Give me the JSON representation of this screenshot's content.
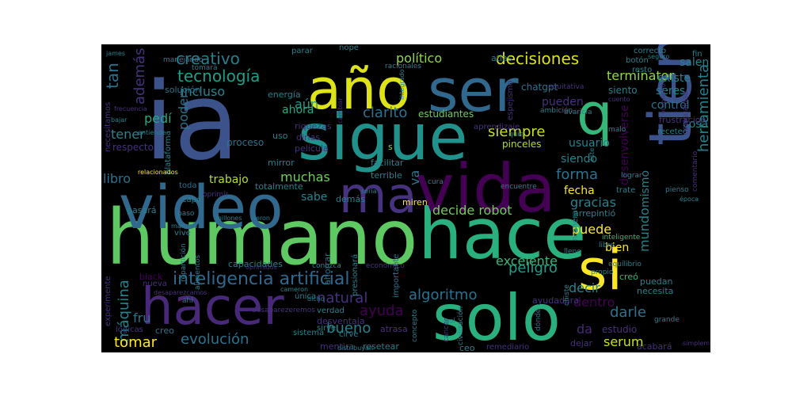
{
  "background": "#000000",
  "palette": [
    "#440154",
    "#46327e",
    "#365c8d",
    "#277f8e",
    "#1fa187",
    "#4ac16d",
    "#a0da39",
    "#fde725"
  ],
  "words": [
    {
      "text": "ia",
      "color": "#3b528b"
    },
    {
      "text": "humano",
      "color": "#5ec962"
    },
    {
      "text": "sigue",
      "color": "#21918c"
    },
    {
      "text": "hace",
      "color": "#2ab07f"
    },
    {
      "text": "video",
      "color": "#31688e"
    },
    {
      "text": "solo",
      "color": "#2ab07f"
    },
    {
      "text": "vida",
      "color": "#440154"
    },
    {
      "text": "tiempo",
      "color": "#3b528b"
    },
    {
      "text": "año",
      "color": "#dde318"
    },
    {
      "text": "ser",
      "color": "#31688e"
    },
    {
      "text": "ma",
      "color": "#46327e"
    },
    {
      "text": "hacer",
      "color": "#482878"
    },
    {
      "text": "si",
      "color": "#fde725"
    },
    {
      "text": "q",
      "color": "#35b779"
    },
    {
      "text": "inteligencia artificial",
      "color": "#31688e"
    },
    {
      "text": "creativo",
      "color": "#277f8e"
    },
    {
      "text": "tecnología",
      "color": "#1f9e89"
    },
    {
      "text": "decisiones",
      "color": "#dde318"
    },
    {
      "text": "político",
      "color": "#90d743"
    },
    {
      "text": "siempre",
      "color": "#c8e020"
    },
    {
      "text": "forma",
      "color": "#2c728e"
    },
    {
      "text": "herramienta",
      "color": "#26828e"
    },
    {
      "text": "máquina",
      "color": "#26828e"
    },
    {
      "text": "evolución",
      "color": "#2c728e"
    },
    {
      "text": "natural",
      "color": "#46327e"
    },
    {
      "text": "algoritmo",
      "color": "#2c728e"
    },
    {
      "text": "peligro",
      "color": "#1f9e89"
    },
    {
      "text": "excelente",
      "color": "#35b779"
    },
    {
      "text": "decide robot",
      "color": "#6ece58"
    },
    {
      "text": "ayuda",
      "color": "#440154"
    },
    {
      "text": "bueno",
      "color": "#26828e"
    },
    {
      "text": "dentro",
      "color": "#440154"
    },
    {
      "text": "darle",
      "color": "#2c728e"
    },
    {
      "text": "mundo",
      "color": "#26828e"
    },
    {
      "text": "tan",
      "color": "#2c728e"
    },
    {
      "text": "además",
      "color": "#46327e"
    },
    {
      "text": "aún",
      "color": "#1f9e89"
    },
    {
      "text": "incluso",
      "color": "#26828e"
    },
    {
      "text": "poder",
      "color": "#2c728e"
    },
    {
      "text": "pedí",
      "color": "#22a884"
    },
    {
      "text": "tener",
      "color": "#26828e"
    },
    {
      "text": "ahora",
      "color": "#22a884"
    },
    {
      "text": "clarito",
      "color": "#2c728e"
    },
    {
      "text": "estudiantes",
      "color": "#6ece58"
    },
    {
      "text": "usuario",
      "color": "#26828e"
    },
    {
      "text": "pueden",
      "color": "#46327e"
    },
    {
      "text": "terminator",
      "color": "#90d743"
    },
    {
      "text": "existe",
      "color": "#26828e"
    },
    {
      "text": "salen",
      "color": "#26828e"
    },
    {
      "text": "seres",
      "color": "#26828e"
    },
    {
      "text": "siento",
      "color": "#26828e"
    },
    {
      "text": "control",
      "color": "#2c728e"
    },
    {
      "text": "cosa",
      "color": "#26828e"
    },
    {
      "text": "siendo",
      "color": "#26828e"
    },
    {
      "text": "mismo",
      "color": "#26828e"
    },
    {
      "text": "muchas",
      "color": "#6ece58"
    },
    {
      "text": "trabajo",
      "color": "#b5de2b"
    },
    {
      "text": "libro",
      "color": "#2c728e"
    },
    {
      "text": "sabe",
      "color": "#26828e"
    },
    {
      "text": "va",
      "color": "#2c728e"
    },
    {
      "text": "fecha",
      "color": "#fde725"
    },
    {
      "text": "gracias",
      "color": "#26828e"
    },
    {
      "text": "puede",
      "color": "#fde725"
    },
    {
      "text": "bien",
      "color": "#fde725"
    },
    {
      "text": "decir",
      "color": "#26828e"
    },
    {
      "text": "da",
      "color": "#482878"
    },
    {
      "text": "tomar",
      "color": "#fde725"
    },
    {
      "text": "fru",
      "color": "#2c728e"
    },
    {
      "text": "serum",
      "color": "#c8e020"
    },
    {
      "text": "estudio",
      "color": "#46327e"
    },
    {
      "text": "respecto",
      "color": "#46327e"
    },
    {
      "text": "proceso",
      "color": "#2c728e"
    },
    {
      "text": "plataforma",
      "color": "#26828e"
    },
    {
      "text": "uso",
      "color": "#26828e"
    },
    {
      "text": "dirías",
      "color": "#46327e"
    },
    {
      "text": "película",
      "color": "#46327e"
    },
    {
      "text": "facilitar",
      "color": "#26828e"
    },
    {
      "text": "terrible",
      "color": "#26828e"
    },
    {
      "text": "pinceles",
      "color": "#b5de2b"
    },
    {
      "text": "aprendizaje",
      "color": "#46327e"
    },
    {
      "text": "chatgpt",
      "color": "#2c728e"
    },
    {
      "text": "solución",
      "color": "#2c728e"
    },
    {
      "text": "energía",
      "color": "#26828e"
    },
    {
      "text": "mirror",
      "color": "#26828e"
    },
    {
      "text": "riquezas",
      "color": "#46327e"
    },
    {
      "text": "toda",
      "color": "#2c728e"
    },
    {
      "text": "capacidades",
      "color": "#26828e"
    },
    {
      "text": "demás",
      "color": "#26828e"
    },
    {
      "text": "totalmente",
      "color": "#26828e"
    },
    {
      "text": "miren",
      "color": "#fde725"
    },
    {
      "text": "arrepintió",
      "color": "#26828e"
    },
    {
      "text": "trate",
      "color": "#26828e"
    },
    {
      "text": "puedan",
      "color": "#26828e"
    },
    {
      "text": "necesita",
      "color": "#26828e"
    },
    {
      "text": "ayudadara",
      "color": "#46327e"
    },
    {
      "text": "creó",
      "color": "#35b779"
    },
    {
      "text": "desenvolverse",
      "color": "#440154"
    },
    {
      "text": "frustracion",
      "color": "#46327e"
    },
    {
      "text": "receteo",
      "color": "#26828e"
    },
    {
      "text": "comentario",
      "color": "#46327e"
    },
    {
      "text": "vive",
      "color": "#26828e"
    },
    {
      "text": "única",
      "color": "#26828e"
    },
    {
      "text": "verdad",
      "color": "#26828e"
    },
    {
      "text": "ahorrar",
      "color": "#2c728e"
    },
    {
      "text": "desventaja",
      "color": "#46327e"
    },
    {
      "text": "atrasa",
      "color": "#46327e"
    },
    {
      "text": "sistema",
      "color": "#26828e"
    },
    {
      "text": "mentira",
      "color": "#46327e"
    },
    {
      "text": "resetear",
      "color": "#26828e"
    },
    {
      "text": "ceo",
      "color": "#26828e"
    },
    {
      "text": "remediario",
      "color": "#46327e"
    },
    {
      "text": "dejar",
      "color": "#46327e"
    },
    {
      "text": "acabará",
      "color": "#46327e"
    },
    {
      "text": "creo",
      "color": "#2c728e"
    },
    {
      "text": "cirve",
      "color": "#26828e"
    },
    {
      "text": "sirve",
      "color": "#26828e"
    },
    {
      "text": "lógicas",
      "color": "#46327e"
    },
    {
      "text": "pasará",
      "color": "#26828e"
    },
    {
      "text": "capo",
      "color": "#26828e"
    },
    {
      "text": "black",
      "color": "#440154"
    },
    {
      "text": "nueva",
      "color": "#46327e"
    },
    {
      "text": "experimente",
      "color": "#46327e"
    },
    {
      "text": "necesitamos",
      "color": "#46327e"
    },
    {
      "text": "atlas",
      "color": "#26828e"
    },
    {
      "text": "nope",
      "color": "#26828e"
    },
    {
      "text": "parar",
      "color": "#26828e"
    },
    {
      "text": "correcto",
      "color": "#26828e"
    },
    {
      "text": "fin",
      "color": "#26828e"
    },
    {
      "text": "resto",
      "color": "#26828e"
    },
    {
      "text": "botón",
      "color": "#26828e"
    },
    {
      "text": "seguro",
      "color": "#26828e"
    },
    {
      "text": "tomará",
      "color": "#26828e"
    },
    {
      "text": "manejando",
      "color": "#26828e"
    },
    {
      "text": "racionales",
      "color": "#26828e"
    },
    {
      "text": "equitativa",
      "color": "#46327e"
    },
    {
      "text": "ambición",
      "color": "#26828e"
    },
    {
      "text": "avaricia",
      "color": "#26828e"
    },
    {
      "text": "cuento",
      "color": "#46327e"
    },
    {
      "text": "visionario",
      "color": "#46327e"
    },
    {
      "text": "espejismo",
      "color": "#46327e"
    },
    {
      "text": "s",
      "color": "#90d743"
    },
    {
      "text": "cura",
      "color": "#26828e"
    },
    {
      "text": "encuentre",
      "color": "#26828e"
    },
    {
      "text": "malo",
      "color": "#26828e"
    },
    {
      "text": "lograr",
      "color": "#26828e"
    },
    {
      "text": "pienso",
      "color": "#26828e"
    },
    {
      "text": "libre",
      "color": "#26828e"
    },
    {
      "text": "propio",
      "color": "#26828e"
    },
    {
      "text": "equilibrio",
      "color": "#26828e"
    },
    {
      "text": "inteligente",
      "color": "#35b779"
    },
    {
      "text": "grande",
      "color": "#26828e"
    },
    {
      "text": "simplemente",
      "color": "#46327e"
    },
    {
      "text": "desigualdad",
      "color": "#46327e"
    },
    {
      "text": "lleno",
      "color": "#26828e"
    },
    {
      "text": "manera",
      "color": "#26828e"
    },
    {
      "text": "chiste",
      "color": "#26828e"
    },
    {
      "text": "dónde",
      "color": "#2c728e"
    },
    {
      "text": "civilización",
      "color": "#26828e"
    },
    {
      "text": "cancer",
      "color": "#46327e"
    },
    {
      "text": "concepto",
      "color": "#26828e"
    },
    {
      "text": "importante",
      "color": "#2c728e"
    },
    {
      "text": "presionará",
      "color": "#26828e"
    },
    {
      "text": "económico",
      "color": "#46327e"
    },
    {
      "text": "conozca",
      "color": "#26828e"
    },
    {
      "text": "así",
      "color": "#26828e"
    },
    {
      "text": "alimentos",
      "color": "#26828e"
    },
    {
      "text": "repartición",
      "color": "#26828e"
    },
    {
      "text": "desaparezcamos",
      "color": "#46327e"
    },
    {
      "text": "desaparezeremos",
      "color": "#46327e"
    },
    {
      "text": "ahí",
      "color": "#26828e"
    },
    {
      "text": "oprimir",
      "color": "#46327e"
    },
    {
      "text": "oprimidos",
      "color": "#46327e"
    },
    {
      "text": "paso",
      "color": "#26828e"
    },
    {
      "text": "marcará",
      "color": "#26828e"
    },
    {
      "text": "millones",
      "color": "#26828e"
    },
    {
      "text": "vieron",
      "color": "#26828e"
    },
    {
      "text": "relacionados",
      "color": "#fde725"
    },
    {
      "text": "distribuyan",
      "color": "#26828e"
    },
    {
      "text": "frecuencia",
      "color": "#46327e"
    },
    {
      "text": "bajar",
      "color": "#26828e"
    },
    {
      "text": "james",
      "color": "#26828e"
    },
    {
      "text": "entiende",
      "color": "#26828e"
    },
    {
      "text": "cambiar",
      "color": "#46327e"
    },
    {
      "text": "dicho",
      "color": "#26828e"
    },
    {
      "text": "integrado",
      "color": "#26828e"
    },
    {
      "text": "quie",
      "color": "#26828e"
    },
    {
      "text": "sería",
      "color": "#26828e"
    },
    {
      "text": "cameron",
      "color": "#26828e"
    },
    {
      "text": "época",
      "color": "#26828e"
    },
    {
      "text": "éste",
      "color": "#26828e"
    }
  ]
}
